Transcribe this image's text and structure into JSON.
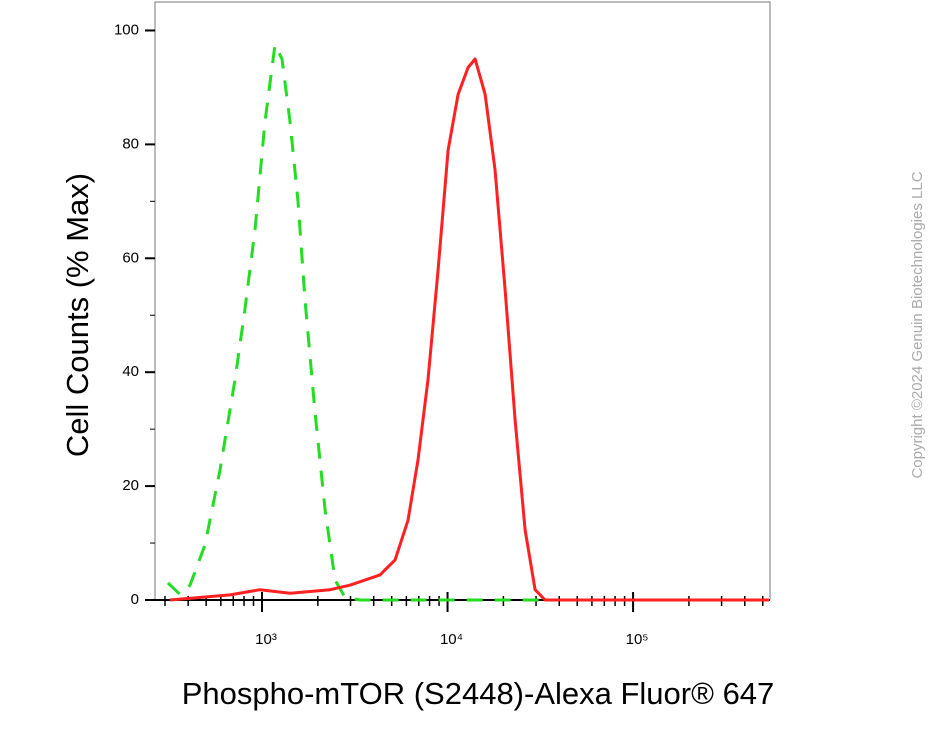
{
  "chart_data": {
    "type": "line",
    "xlabel": "Phospho-mTOR (S2448)-Alexa Fluor® 647",
    "ylabel": "Cell Counts (% Max)",
    "watermark": "Copyright ©2024 Genuin Biotechnologies LLC",
    "xscale": "log",
    "xlim": [
      265,
      547000
    ],
    "ylim": [
      0,
      105
    ],
    "xticks": [
      {
        "value": 1000,
        "label": "10³"
      },
      {
        "value": 10000,
        "label": "10⁴"
      },
      {
        "value": 100000,
        "label": "10⁵"
      }
    ],
    "xminorticks": [
      300,
      400,
      500,
      600,
      700,
      800,
      900,
      2000,
      3000,
      4000,
      5000,
      6000,
      7000,
      8000,
      9000,
      20000,
      30000,
      40000,
      50000,
      60000,
      70000,
      80000,
      90000,
      200000,
      300000,
      400000,
      500000
    ],
    "yticks": [
      0,
      20,
      40,
      60,
      80,
      100
    ],
    "grid": false,
    "series": [
      {
        "color": "#22dd22",
        "line_style": "dashed",
        "x": [
          311,
          361,
          409,
          493,
          594,
          715,
          809,
          917,
          1038,
          1175,
          1282,
          1416,
          1564,
          1706,
          1931,
          2188,
          2477,
          2799,
          3374,
          19200,
          540000
        ],
        "values": [
          3,
          1,
          2.6,
          9.7,
          22.8,
          38.7,
          51,
          65,
          84,
          97.5,
          95,
          84,
          70,
          52.7,
          33,
          15.8,
          3.5,
          0.5,
          0,
          0,
          0
        ]
      },
      {
        "color": "#ff2020",
        "line_style": "solid",
        "x": [
          319,
          673,
          975,
          1416,
          2328,
          2978,
          4325,
          5210,
          6120,
          6930,
          7850,
          8890,
          10070,
          11400,
          12900,
          14070,
          15930,
          18030,
          20420,
          23120,
          26180,
          29650,
          33570,
          66400,
          540000
        ],
        "values": [
          0,
          0.9,
          1.8,
          1.2,
          1.8,
          2.6,
          4.4,
          7,
          14,
          24.6,
          38.7,
          58,
          79,
          88.8,
          93.5,
          95,
          88.8,
          75.6,
          54.5,
          31.6,
          12.3,
          1.8,
          0,
          0,
          0
        ]
      }
    ]
  }
}
